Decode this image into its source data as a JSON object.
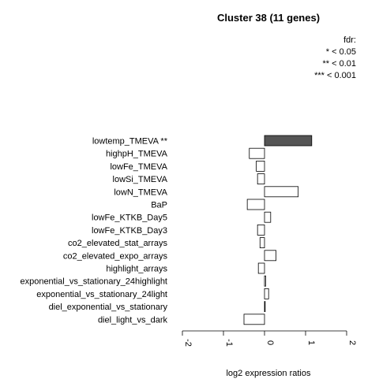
{
  "chart_data": {
    "type": "bar",
    "orientation": "horizontal",
    "title": "Cluster 38 (11 genes)",
    "xlabel": "log2 expression ratios",
    "xlim": [
      -2,
      2
    ],
    "xticks": [
      "-2",
      "-1",
      "0",
      "1",
      "2"
    ],
    "legend": {
      "position": "top-right",
      "lines": [
        "fdr:",
        "* < 0.05",
        "** < 0.01",
        "*** < 0.001"
      ]
    },
    "colors": {
      "highlight": "#555555",
      "normal": "#ffffff",
      "stroke": "#000000"
    },
    "categories": [
      "lowtemp_TMEVA **",
      "highpH_TMEVA",
      "lowFe_TMEVA",
      "lowSi_TMEVA",
      "lowN_TMEVA",
      "BaP",
      "lowFe_KTKB_Day5",
      "lowFe_KTKB_Day3",
      "co2_elevated_stat_arrays",
      "co2_elevated_expo_arrays",
      "highlight_arrays",
      "exponential_vs_stationary_24highlight",
      "exponential_vs_stationary_24light",
      "diel_exponential_vs_stationary",
      "diel_light_vs_dark"
    ],
    "values": [
      1.15,
      -0.37,
      -0.2,
      -0.17,
      0.82,
      -0.42,
      0.15,
      -0.17,
      -0.11,
      0.28,
      -0.15,
      0.03,
      0.1,
      0.0,
      -0.5
    ],
    "highlighted": [
      true,
      false,
      false,
      false,
      false,
      false,
      false,
      false,
      false,
      false,
      false,
      false,
      false,
      false,
      false
    ]
  }
}
